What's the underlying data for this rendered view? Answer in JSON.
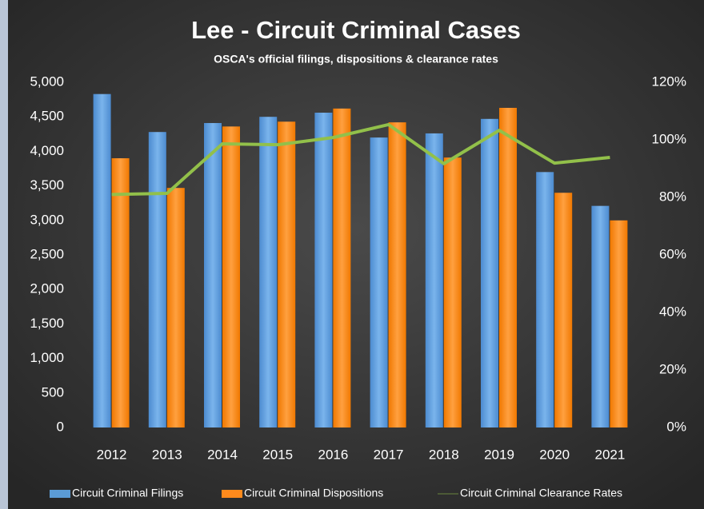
{
  "chart_data": {
    "type": "bar",
    "title": "Lee - Circuit Criminal Cases",
    "subtitle": "OSCA's official filings, dispositions & clearance rates",
    "categories": [
      "2012",
      "2013",
      "2014",
      "2015",
      "2016",
      "2017",
      "2018",
      "2019",
      "2020",
      "2021"
    ],
    "series": [
      {
        "name": "Circuit Criminal Filings",
        "color": "#5b9bd5",
        "type": "bar",
        "values": [
          4830,
          4280,
          4410,
          4500,
          4560,
          4200,
          4260,
          4470,
          3700,
          3210
        ]
      },
      {
        "name": "Circuit Criminal Dispositions",
        "color": "#ff8a1c",
        "type": "bar",
        "values": [
          3900,
          3470,
          4360,
          4430,
          4620,
          4420,
          3910,
          4630,
          3400,
          3000
        ]
      },
      {
        "name": "Circuit Criminal Clearance Rates",
        "color": "#92c04a",
        "type": "line",
        "axis": "y2",
        "values": [
          81,
          81.4,
          98.6,
          98.3,
          100.8,
          105.3,
          91.7,
          103.3,
          91.9,
          93.9
        ]
      }
    ],
    "ylim": [
      0,
      5000
    ],
    "yticks": [
      0,
      500,
      {
        "value": 1000,
        "label": "1,000"
      },
      {
        "value": 1500,
        "label": "1,500"
      },
      {
        "value": 2000,
        "label": "2,000"
      },
      {
        "value": 2500,
        "label": "2,500"
      },
      {
        "value": 3000,
        "label": "3,000"
      },
      {
        "value": 3500,
        "label": "3,500"
      },
      {
        "value": 4000,
        "label": "4,000"
      },
      {
        "value": 4500,
        "label": "4,500"
      },
      {
        "value": 5000,
        "label": "5,000"
      }
    ],
    "y2lim": [
      0,
      120
    ],
    "y2ticks": [
      {
        "value": 0,
        "label": "0%"
      },
      {
        "value": 20,
        "label": "20%"
      },
      {
        "value": 40,
        "label": "40%"
      },
      {
        "value": 60,
        "label": "60%"
      },
      {
        "value": 80,
        "label": "80%"
      },
      {
        "value": 100,
        "label": "100%"
      },
      {
        "value": 120,
        "label": "120%"
      }
    ],
    "legend": "bottom"
  }
}
